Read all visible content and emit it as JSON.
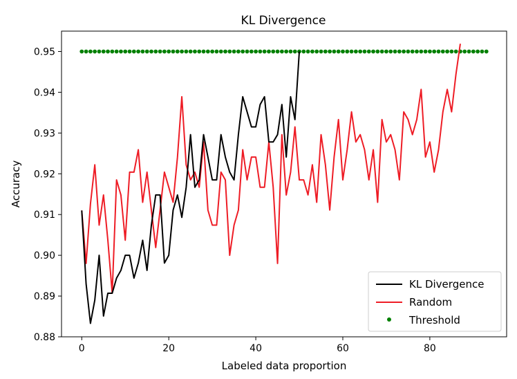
{
  "chart_data": {
    "type": "line",
    "title": "KL Divergence",
    "xlabel": "Labeled data proportion",
    "ylabel": "Accuracy",
    "xlim": [
      -4.65,
      97.65
    ],
    "ylim": [
      0.88,
      0.955
    ],
    "xticks": [
      0,
      20,
      40,
      60,
      80
    ],
    "yticks": [
      0.88,
      0.89,
      0.9,
      0.91,
      0.92,
      0.93,
      0.94,
      0.95
    ],
    "ytick_labels": [
      "0.88",
      "0.89",
      "0.90",
      "0.91",
      "0.92",
      "0.93",
      "0.94",
      "0.95"
    ],
    "grid": false,
    "legend_position": "lower-right",
    "series": [
      {
        "name": "KL Divergence",
        "style": "line",
        "color": "#000000",
        "x": [
          0,
          1,
          2,
          3,
          4,
          5,
          6,
          7,
          8,
          9,
          10,
          11,
          12,
          13,
          14,
          15,
          16,
          17,
          18,
          19,
          20,
          21,
          22,
          23,
          24,
          25,
          26,
          27,
          28,
          29,
          30,
          31,
          32,
          33,
          34,
          35,
          36,
          37,
          38,
          39,
          40,
          41,
          42,
          43,
          44,
          45,
          46,
          47,
          48,
          49,
          50
        ],
        "y": [
          0.911,
          0.893,
          0.8833,
          0.889,
          0.9,
          0.8851,
          0.8907,
          0.8907,
          0.8944,
          0.8963,
          0.9,
          0.9,
          0.8944,
          0.8981,
          0.9037,
          0.8963,
          0.9074,
          0.9148,
          0.9148,
          0.8981,
          0.9,
          0.9111,
          0.9148,
          0.9093,
          0.9167,
          0.9296,
          0.9167,
          0.9185,
          0.9296,
          0.9241,
          0.9185,
          0.9185,
          0.9296,
          0.9241,
          0.9204,
          0.9185,
          0.9296,
          0.9389,
          0.9352,
          0.9315,
          0.9315,
          0.937,
          0.9389,
          0.9278,
          0.9278,
          0.9296,
          0.937,
          0.9241,
          0.9389,
          0.9333,
          0.95
        ]
      },
      {
        "name": "Random",
        "style": "line",
        "color": "#ee1c25",
        "x": [
          0,
          1,
          2,
          3,
          4,
          5,
          6,
          7,
          8,
          9,
          10,
          11,
          12,
          13,
          14,
          15,
          16,
          17,
          18,
          19,
          20,
          21,
          22,
          23,
          24,
          25,
          26,
          27,
          28,
          29,
          30,
          31,
          32,
          33,
          34,
          35,
          36,
          37,
          38,
          39,
          40,
          41,
          42,
          43,
          44,
          45,
          46,
          47,
          48,
          49,
          50,
          51,
          52,
          53,
          54,
          55,
          56,
          57,
          58,
          59,
          60,
          61,
          62,
          63,
          64,
          65,
          66,
          67,
          68,
          69,
          70,
          71,
          72,
          73,
          74,
          75,
          76,
          77,
          78,
          79,
          80,
          81,
          82,
          83,
          84,
          85,
          86,
          87
        ],
        "y": [
          0.911,
          0.898,
          0.9126,
          0.9222,
          0.9074,
          0.9148,
          0.9037,
          0.8907,
          0.9185,
          0.9148,
          0.9037,
          0.9204,
          0.9204,
          0.9259,
          0.913,
          0.9204,
          0.9111,
          0.9019,
          0.9111,
          0.9204,
          0.9167,
          0.913,
          0.9241,
          0.9389,
          0.9222,
          0.9185,
          0.9204,
          0.9167,
          0.9278,
          0.9111,
          0.9074,
          0.9074,
          0.9204,
          0.9185,
          0.9,
          0.9074,
          0.9111,
          0.9259,
          0.9185,
          0.9241,
          0.9241,
          0.9167,
          0.9167,
          0.9278,
          0.9167,
          0.898,
          0.9296,
          0.9148,
          0.9204,
          0.9315,
          0.9185,
          0.9185,
          0.9148,
          0.9222,
          0.913,
          0.9296,
          0.9222,
          0.9111,
          0.9241,
          0.9333,
          0.9185,
          0.9259,
          0.9352,
          0.9278,
          0.9296,
          0.9259,
          0.9185,
          0.9259,
          0.913,
          0.9333,
          0.9278,
          0.9296,
          0.9259,
          0.9185,
          0.9352,
          0.9333,
          0.9296,
          0.9333,
          0.9407,
          0.9241,
          0.9278,
          0.9204,
          0.9259,
          0.9352,
          0.9407,
          0.9352,
          0.9444,
          0.9519
        ]
      },
      {
        "name": "Threshold",
        "style": "scatter",
        "color": "#008000",
        "x": [
          0,
          1,
          2,
          3,
          4,
          5,
          6,
          7,
          8,
          9,
          10,
          11,
          12,
          13,
          14,
          15,
          16,
          17,
          18,
          19,
          20,
          21,
          22,
          23,
          24,
          25,
          26,
          27,
          28,
          29,
          30,
          31,
          32,
          33,
          34,
          35,
          36,
          37,
          38,
          39,
          40,
          41,
          42,
          43,
          44,
          45,
          46,
          47,
          48,
          49,
          50,
          51,
          52,
          53,
          54,
          55,
          56,
          57,
          58,
          59,
          60,
          61,
          62,
          63,
          64,
          65,
          66,
          67,
          68,
          69,
          70,
          71,
          72,
          73,
          74,
          75,
          76,
          77,
          78,
          79,
          80,
          81,
          82,
          83,
          84,
          85,
          86,
          87,
          88,
          89,
          90,
          91,
          92,
          93
        ],
        "y_constant": 0.95
      }
    ]
  }
}
